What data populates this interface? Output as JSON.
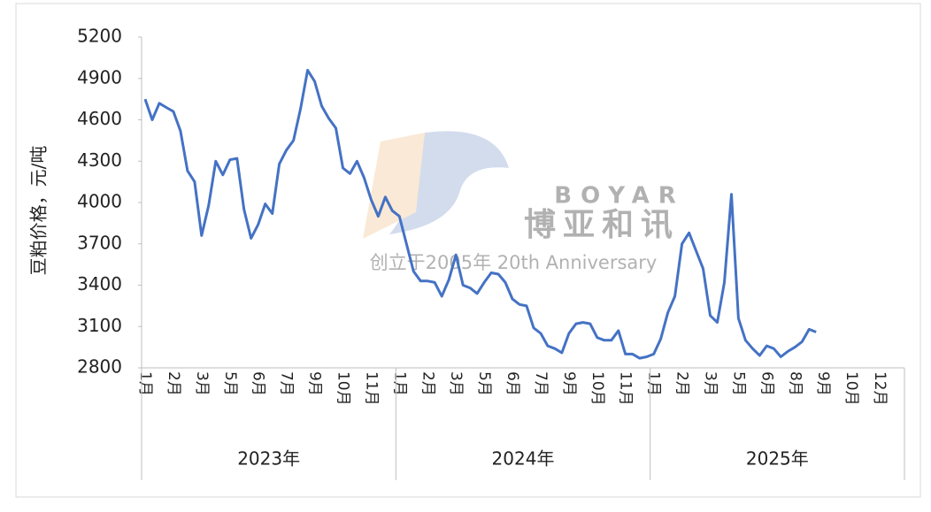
{
  "chart_data": {
    "type": "line",
    "y_label": "豆粕价格，元/吨",
    "categories": [
      "1月",
      null,
      null,
      null,
      "2月",
      null,
      null,
      null,
      "3月",
      null,
      null,
      null,
      "5月",
      null,
      null,
      null,
      "6月",
      null,
      null,
      null,
      "7月",
      null,
      null,
      null,
      "9月",
      null,
      null,
      null,
      "10月",
      null,
      null,
      null,
      "11月",
      null,
      null,
      null,
      "1月",
      null,
      null,
      null,
      "2月",
      null,
      null,
      null,
      "3月",
      null,
      null,
      null,
      "5月",
      null,
      null,
      null,
      "6月",
      null,
      null,
      null,
      "7月",
      null,
      null,
      null,
      "9月",
      null,
      null,
      null,
      "10月",
      null,
      null,
      null,
      "11月",
      null,
      null,
      null,
      "1月",
      null,
      null,
      null,
      "2月",
      null,
      null,
      null,
      "3月",
      null,
      null,
      null,
      "5月",
      null,
      null,
      null,
      "6月",
      null,
      null,
      null,
      "8月",
      null,
      null,
      null,
      "9月",
      null,
      null,
      null,
      "10月",
      null,
      null,
      null,
      "12月",
      null,
      null,
      null
    ],
    "x_groups": [
      "2023年",
      "2024年",
      "2025年"
    ],
    "series": [
      {
        "color": "#4472c4",
        "values": [
          4750,
          4600,
          4720,
          4690,
          4660,
          4520,
          4230,
          4150,
          3760,
          3980,
          4300,
          4200,
          4310,
          4320,
          3950,
          3740,
          3840,
          3990,
          3920,
          4280,
          4380,
          4450,
          4680,
          4960,
          4880,
          4700,
          4610,
          4540,
          4250,
          4210,
          4300,
          4180,
          4020,
          3900,
          4040,
          3940,
          3900,
          3700,
          3500,
          3430,
          3430,
          3420,
          3320,
          3440,
          3620,
          3400,
          3380,
          3340,
          3420,
          3490,
          3480,
          3420,
          3300,
          3260,
          3250,
          3090,
          3050,
          2960,
          2940,
          2910,
          3050,
          3120,
          3130,
          3120,
          3020,
          3000,
          3000,
          3070,
          2900,
          2900,
          2870,
          2880,
          2900,
          3010,
          3200,
          3320,
          3700,
          3780,
          3650,
          3520,
          3180,
          3130,
          3420,
          4060,
          3160,
          3000,
          2940,
          2890,
          2960,
          2940,
          2880,
          2920,
          2950,
          2990,
          3080,
          3060,
          null,
          null,
          null,
          null,
          null,
          null,
          null,
          null,
          null,
          null,
          null,
          null
        ]
      }
    ],
    "ylim": [
      2800,
      5200
    ],
    "yticks": [
      2800,
      3100,
      3400,
      3700,
      4000,
      4300,
      4600,
      4900,
      5200
    ],
    "grid": false
  },
  "watermark": {
    "brand": "BOYAR",
    "name": "博亚和讯",
    "tagline": "创立于2005年 20th Anniversary"
  }
}
